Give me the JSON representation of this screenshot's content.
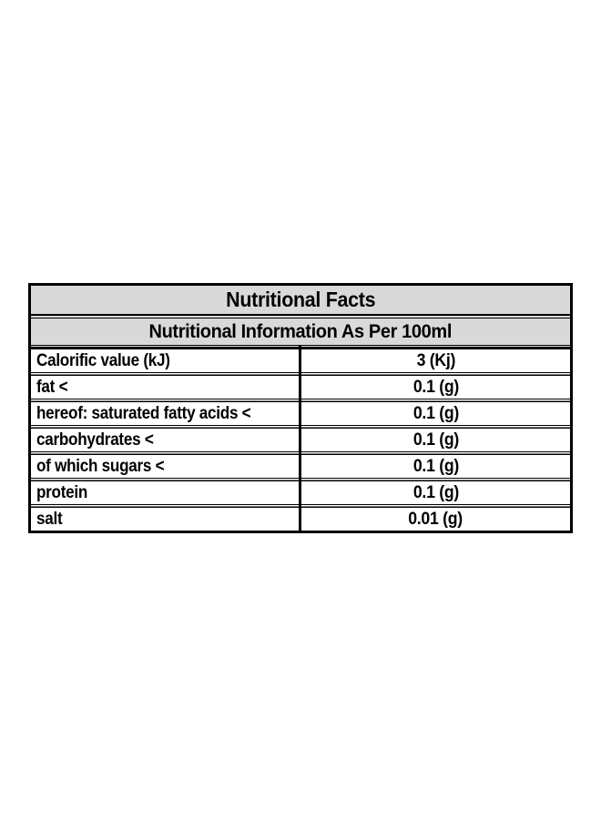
{
  "page": {
    "background": "#ffffff"
  },
  "table": {
    "title": "Nutritional Facts",
    "subtitle": "Nutritional Information As Per 100ml",
    "colors": {
      "header_bg": "#d9d9d9",
      "row_bg": "#ffffff",
      "border": "#000000",
      "text": "#000000"
    },
    "rows": [
      {
        "label": "Calorific value (kJ)",
        "value": "3 (Kj)"
      },
      {
        "label": "fat <",
        "value": "0.1 (g)"
      },
      {
        "label": "hereof: saturated fatty acids <",
        "value": "0.1 (g)"
      },
      {
        "label": "carbohydrates <",
        "value": "0.1 (g)"
      },
      {
        "label": "of which sugars <",
        "value": "0.1 (g)"
      },
      {
        "label": "protein",
        "value": "0.1 (g)"
      },
      {
        "label": "salt",
        "value": "0.01 (g)"
      }
    ]
  }
}
